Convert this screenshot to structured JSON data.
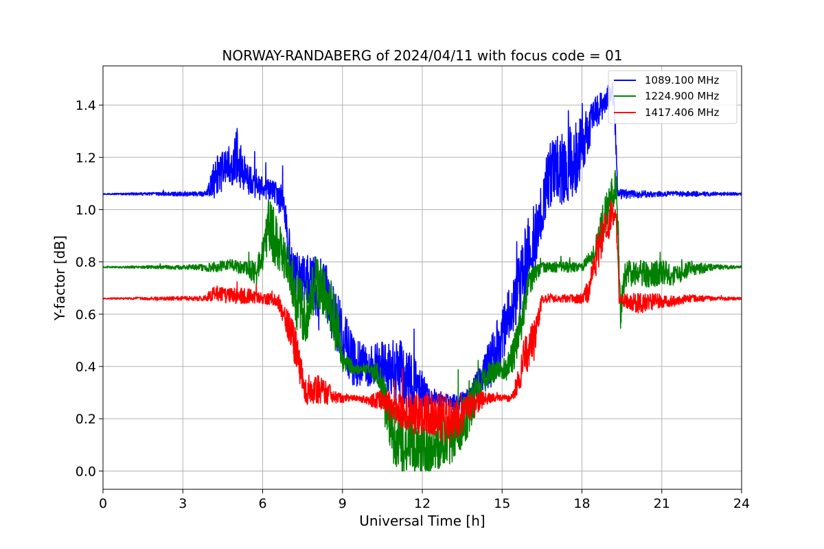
{
  "chart_data": {
    "type": "line",
    "title": "NORWAY-RANDABERG of 2024/04/11 with focus code = 01",
    "xlabel": "Universal Time [h]",
    "ylabel": "Y-factor [dB]",
    "xlim": [
      0,
      24
    ],
    "ylim": [
      -0.07,
      1.55
    ],
    "xticks": [
      0,
      3,
      6,
      9,
      12,
      15,
      18,
      21,
      24
    ],
    "yticks": [
      0.0,
      0.2,
      0.4,
      0.6,
      0.8,
      1.0,
      1.2,
      1.4
    ],
    "ytick_labels": [
      "0.0",
      "0.2",
      "0.4",
      "0.6",
      "0.8",
      "1.0",
      "1.2",
      "1.4"
    ],
    "grid": true,
    "legend_position": "top-right",
    "series": [
      {
        "name": "1089.100 MHz",
        "color": "#0000ff",
        "x": [
          0,
          3.9,
          4.2,
          4.6,
          5.0,
          5.4,
          5.9,
          6.4,
          6.8,
          7.1,
          7.5,
          8.0,
          8.3,
          8.6,
          9.0,
          9.4,
          10.0,
          10.6,
          11.2,
          11.8,
          12.3,
          12.8,
          13.3,
          13.8,
          14.2,
          14.6,
          15.0,
          15.3,
          15.6,
          15.9,
          16.2,
          16.5,
          16.7,
          17.2,
          17.8,
          18.2,
          18.6,
          19.0,
          19.2,
          19.35,
          19.5,
          20.0,
          21.0,
          22.0,
          23.0,
          24.0
        ],
        "y": [
          1.06,
          1.06,
          1.12,
          1.15,
          1.2,
          1.12,
          1.08,
          1.07,
          1.02,
          0.75,
          0.74,
          0.7,
          0.72,
          0.62,
          0.52,
          0.42,
          0.4,
          0.4,
          0.38,
          0.32,
          0.28,
          0.27,
          0.26,
          0.29,
          0.36,
          0.42,
          0.52,
          0.62,
          0.7,
          0.8,
          0.88,
          1.0,
          1.12,
          1.16,
          1.2,
          1.3,
          1.38,
          1.43,
          1.45,
          1.06,
          1.06,
          1.06,
          1.06,
          1.06,
          1.06,
          1.06
        ],
        "noise": [
          0.002,
          0.01,
          0.08,
          0.08,
          0.1,
          0.06,
          0.05,
          0.04,
          0.08,
          0.1,
          0.09,
          0.12,
          0.1,
          0.12,
          0.12,
          0.1,
          0.08,
          0.1,
          0.12,
          0.1,
          0.04,
          0.03,
          0.03,
          0.04,
          0.06,
          0.1,
          0.12,
          0.12,
          0.12,
          0.15,
          0.14,
          0.1,
          0.12,
          0.15,
          0.14,
          0.1,
          0.06,
          0.05,
          0.05,
          0.02,
          0.02,
          0.015,
          0.01,
          0.01,
          0.008,
          0.005
        ]
      },
      {
        "name": "1224.900 MHz",
        "color": "#008000",
        "x": [
          0,
          3.5,
          4.2,
          4.8,
          5.4,
          5.8,
          6.2,
          6.6,
          7.0,
          7.3,
          7.6,
          8.0,
          8.4,
          8.8,
          9.0,
          9.5,
          10.0,
          10.4,
          10.8,
          11.4,
          12.0,
          12.5,
          13.0,
          13.5,
          14.0,
          14.4,
          14.8,
          15.2,
          15.6,
          16.0,
          16.5,
          17.0,
          17.5,
          18.0,
          18.4,
          18.8,
          19.1,
          19.3,
          19.45,
          19.6,
          20.0,
          20.5,
          21.0,
          21.5,
          22.0,
          23.0,
          24.0
        ],
        "y": [
          0.78,
          0.78,
          0.78,
          0.79,
          0.77,
          0.76,
          0.95,
          0.85,
          0.78,
          0.65,
          0.6,
          0.72,
          0.68,
          0.55,
          0.42,
          0.39,
          0.39,
          0.36,
          0.15,
          0.1,
          0.08,
          0.1,
          0.12,
          0.18,
          0.28,
          0.36,
          0.39,
          0.39,
          0.5,
          0.72,
          0.78,
          0.78,
          0.78,
          0.78,
          0.82,
          0.95,
          1.05,
          1.1,
          0.6,
          0.75,
          0.76,
          0.75,
          0.76,
          0.75,
          0.77,
          0.78,
          0.78
        ],
        "noise": [
          0.002,
          0.01,
          0.02,
          0.02,
          0.03,
          0.05,
          0.12,
          0.1,
          0.08,
          0.12,
          0.12,
          0.1,
          0.1,
          0.12,
          0.04,
          0.02,
          0.02,
          0.06,
          0.12,
          0.12,
          0.1,
          0.1,
          0.1,
          0.1,
          0.08,
          0.05,
          0.04,
          0.05,
          0.08,
          0.06,
          0.02,
          0.02,
          0.02,
          0.015,
          0.04,
          0.08,
          0.07,
          0.06,
          0.06,
          0.05,
          0.05,
          0.05,
          0.05,
          0.04,
          0.03,
          0.01,
          0.005
        ]
      },
      {
        "name": "1417.406 MHz",
        "color": "#ff0000",
        "x": [
          0,
          3.8,
          4.2,
          4.8,
          5.4,
          6.0,
          6.6,
          7.0,
          7.3,
          7.6,
          8.0,
          8.4,
          8.8,
          9.5,
          10.0,
          10.5,
          11.0,
          11.5,
          12.0,
          12.5,
          13.0,
          13.5,
          14.0,
          14.5,
          15.0,
          15.4,
          15.8,
          16.2,
          16.5,
          17.0,
          17.5,
          18.0,
          18.3,
          18.6,
          18.9,
          19.1,
          19.3,
          19.4,
          19.7,
          20.2,
          20.8,
          21.5,
          22.0,
          23.0,
          24.0
        ],
        "y": [
          0.66,
          0.66,
          0.68,
          0.67,
          0.67,
          0.66,
          0.65,
          0.55,
          0.45,
          0.3,
          0.32,
          0.3,
          0.28,
          0.28,
          0.27,
          0.27,
          0.24,
          0.22,
          0.22,
          0.22,
          0.2,
          0.22,
          0.26,
          0.28,
          0.28,
          0.28,
          0.42,
          0.5,
          0.66,
          0.66,
          0.66,
          0.66,
          0.7,
          0.85,
          0.92,
          0.98,
          0.95,
          0.66,
          0.65,
          0.64,
          0.65,
          0.65,
          0.66,
          0.66,
          0.66
        ],
        "noise": [
          0.002,
          0.01,
          0.03,
          0.03,
          0.03,
          0.02,
          0.03,
          0.06,
          0.08,
          0.05,
          0.06,
          0.05,
          0.02,
          0.01,
          0.02,
          0.04,
          0.06,
          0.08,
          0.08,
          0.09,
          0.1,
          0.08,
          0.05,
          0.02,
          0.01,
          0.02,
          0.08,
          0.08,
          0.02,
          0.015,
          0.015,
          0.02,
          0.06,
          0.08,
          0.07,
          0.06,
          0.06,
          0.02,
          0.03,
          0.04,
          0.03,
          0.02,
          0.015,
          0.008,
          0.005
        ]
      }
    ]
  }
}
